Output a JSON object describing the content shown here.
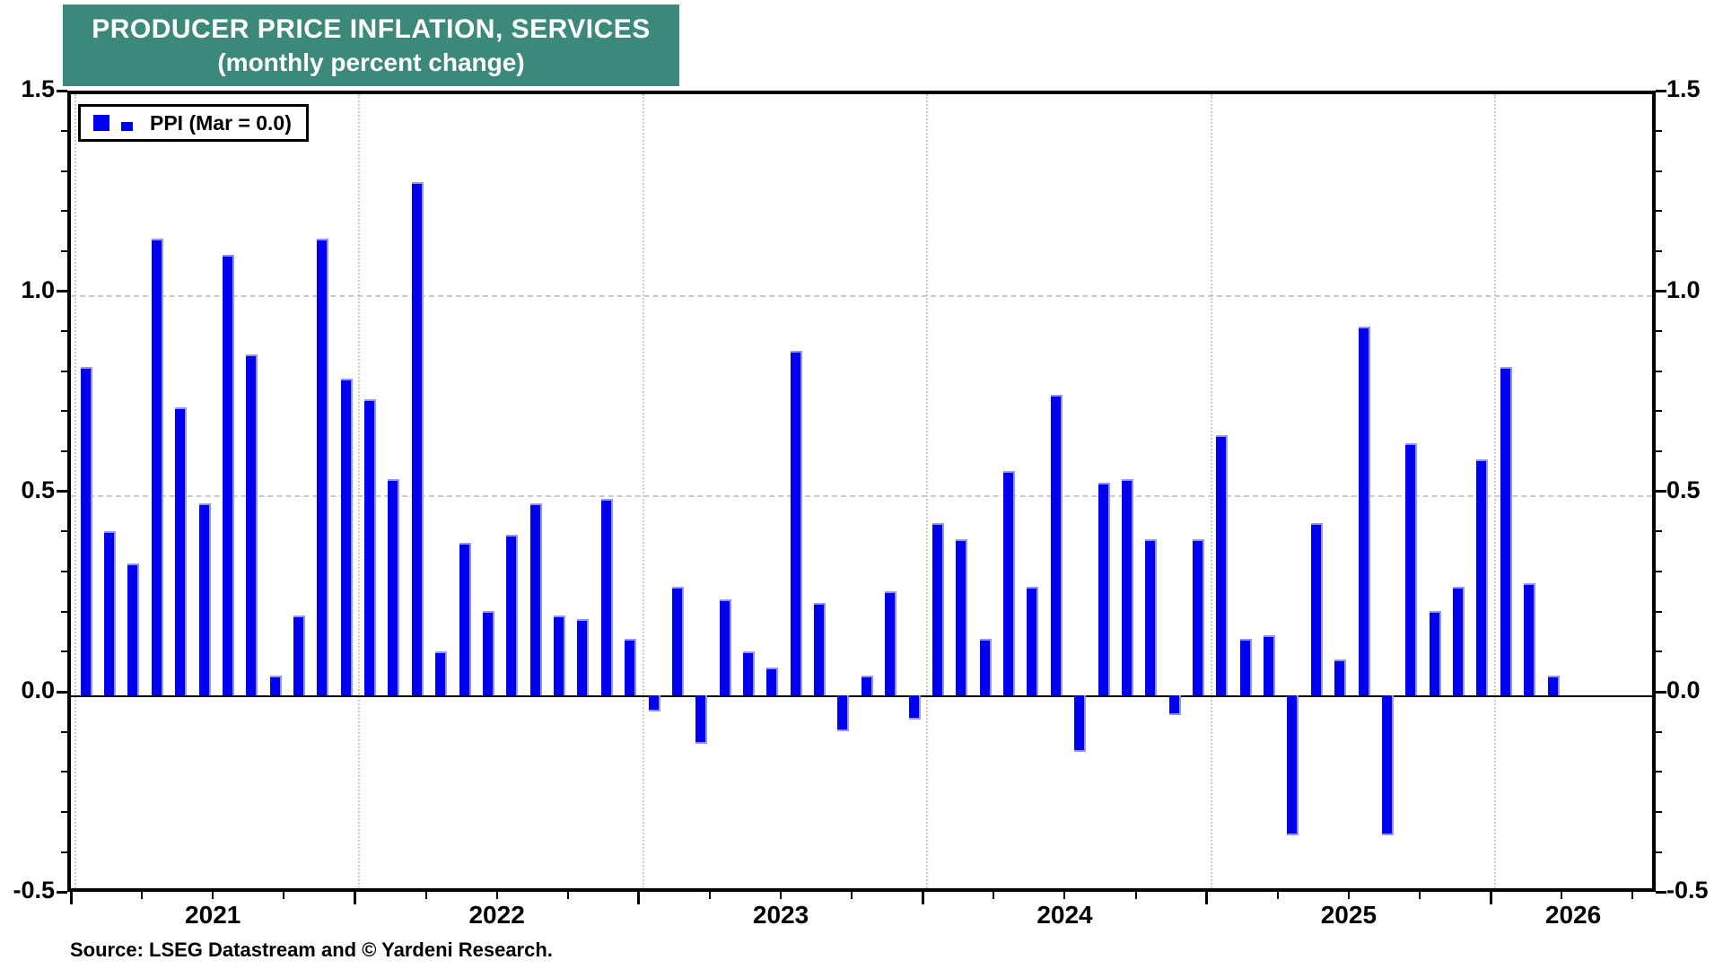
{
  "header": {
    "title": "PRODUCER PRICE INFLATION, SERVICES",
    "subtitle": "(monthly percent change)"
  },
  "legend": {
    "label": "PPI (Mar = 0.0)"
  },
  "y_axis": {
    "tick_labels": [
      "1.5",
      "1.0",
      "0.5",
      "0.0",
      "-0.5"
    ]
  },
  "x_axis": {
    "year_labels": [
      "2021",
      "2022",
      "2023",
      "2024",
      "2025",
      "2026"
    ]
  },
  "source": "Source: LSEG Datastream and © Yardeni Research.",
  "colors": {
    "header_bg": "#3C897C",
    "header_text": "#FFFFFF",
    "bar": "#0000F0",
    "bar_edge": "#9595FF",
    "grid": "#C9C9C9",
    "axis": "#000000"
  },
  "chart_data": {
    "type": "bar",
    "title": "PRODUCER PRICE INFLATION, SERVICES",
    "subtitle": "(monthly percent change)",
    "series_name": "PPI",
    "legend_note": "PPI (Mar = 0.0)",
    "legend_position": "top-left",
    "grid": true,
    "xlabel": "",
    "ylabel": "",
    "ylim": [
      -0.5,
      1.5
    ],
    "y_major_step": 0.5,
    "y_minor_step": 0.1,
    "categories": [
      "2021-01",
      "2021-02",
      "2021-03",
      "2021-04",
      "2021-05",
      "2021-06",
      "2021-07",
      "2021-08",
      "2021-09",
      "2021-10",
      "2021-11",
      "2021-12",
      "2022-01",
      "2022-02",
      "2022-03",
      "2022-04",
      "2022-05",
      "2022-06",
      "2022-07",
      "2022-08",
      "2022-09",
      "2022-10",
      "2022-11",
      "2022-12",
      "2023-01",
      "2023-02",
      "2023-03",
      "2023-04",
      "2023-05",
      "2023-06",
      "2023-07",
      "2023-08",
      "2023-09",
      "2023-10",
      "2023-11",
      "2023-12",
      "2024-01",
      "2024-02",
      "2024-03",
      "2024-04",
      "2024-05",
      "2024-06",
      "2024-07",
      "2024-08",
      "2024-09",
      "2024-10",
      "2024-11",
      "2024-12",
      "2025-01",
      "2025-02",
      "2025-03",
      "2025-04",
      "2025-05",
      "2025-06",
      "2025-07",
      "2025-08",
      "2025-09",
      "2025-10",
      "2025-11",
      "2025-12",
      "2026-01",
      "2026-02",
      "2026-03"
    ],
    "values": [
      0.82,
      0.41,
      0.33,
      1.14,
      0.72,
      0.48,
      1.1,
      0.85,
      0.05,
      0.2,
      1.14,
      0.79,
      0.74,
      0.54,
      1.28,
      0.11,
      0.38,
      0.21,
      0.4,
      0.48,
      0.2,
      0.19,
      0.49,
      0.14,
      -0.04,
      0.27,
      -0.12,
      0.24,
      0.11,
      0.07,
      0.86,
      0.23,
      -0.09,
      0.05,
      0.26,
      -0.06,
      0.43,
      0.39,
      0.14,
      0.56,
      0.27,
      0.75,
      -0.14,
      0.53,
      0.54,
      0.39,
      -0.05,
      0.39,
      0.65,
      0.14,
      0.15,
      -0.35,
      0.43,
      0.09,
      0.92,
      -0.35,
      0.63,
      0.21,
      0.27,
      0.59,
      0.82,
      0.28,
      0.05
    ]
  }
}
